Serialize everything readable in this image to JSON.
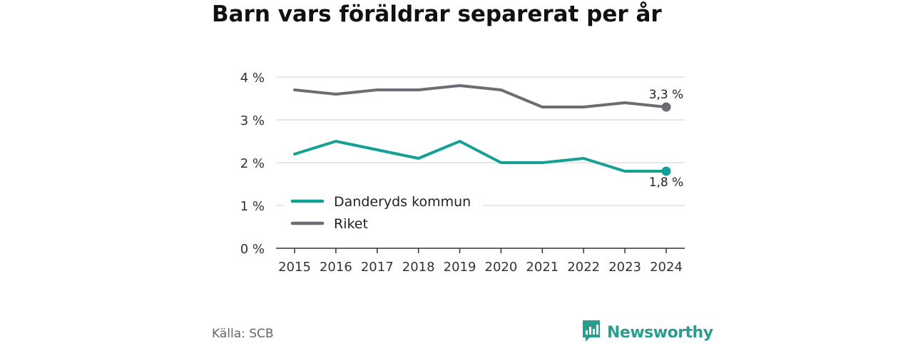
{
  "chart_data": {
    "type": "line",
    "title": "Barn vars föräldrar separerat per år",
    "x": [
      "2015",
      "2016",
      "2017",
      "2018",
      "2019",
      "2020",
      "2021",
      "2022",
      "2023",
      "2024"
    ],
    "y_ticks": [
      0,
      1,
      2,
      3,
      4
    ],
    "y_tick_labels": [
      "0 %",
      "1 %",
      "2 %",
      "3 %",
      "4 %"
    ],
    "ylim": [
      0,
      4
    ],
    "grid": true,
    "legend_position": "lower-left",
    "series": [
      {
        "name": "Danderyds kommun",
        "color": "#16a095",
        "values": [
          2.2,
          2.5,
          2.3,
          2.1,
          2.5,
          2.0,
          2.0,
          2.1,
          1.8,
          1.8
        ],
        "end_label": "1,8 %"
      },
      {
        "name": "Riket",
        "color": "#6d6c72",
        "values": [
          3.7,
          3.6,
          3.7,
          3.7,
          3.8,
          3.7,
          3.3,
          3.3,
          3.4,
          3.3
        ],
        "end_label": "3,3 %"
      }
    ]
  },
  "footer": {
    "source": "Källa: SCB",
    "brand": "Newsworthy",
    "brand_icon": "newsworthy-logo-icon"
  }
}
